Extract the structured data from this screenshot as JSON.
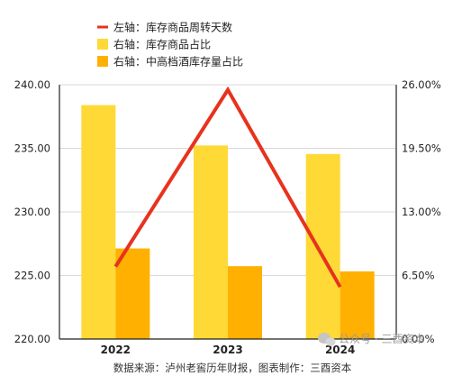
{
  "chart_data": {
    "type": "bar",
    "categories": [
      "2022",
      "2023",
      "2024"
    ],
    "series": [
      {
        "name": "右轴：库存商品占比",
        "axis": "right",
        "color": "#FFD936",
        "values": [
          23.92,
          19.79,
          18.92
        ]
      },
      {
        "name": "右轴：中高档酒库存量占比",
        "axis": "right",
        "color": "#FFB000",
        "values": [
          9.26,
          7.45,
          6.91
        ]
      },
      {
        "name": "左轴：库存商品周转天数",
        "axis": "left",
        "type": "line",
        "color": "#E8321E",
        "values": [
          225.7,
          239.6,
          224.1
        ]
      }
    ],
    "y_left": {
      "ylim": [
        220,
        240
      ],
      "ticks": [
        "220.00",
        "225.00",
        "230.00",
        "235.00",
        "240.00"
      ]
    },
    "y_right": {
      "ylim": [
        0,
        26
      ],
      "ticks": [
        "0.00%",
        "6.50%",
        "13.00%",
        "19.50%",
        "26.00%"
      ]
    },
    "legend_placement": "top-left",
    "grid": "horizontal",
    "source": "数据来源：泸州老窖历年财报，图表制作：三酉资本"
  },
  "watermark": "公众号 · 三酉资本"
}
